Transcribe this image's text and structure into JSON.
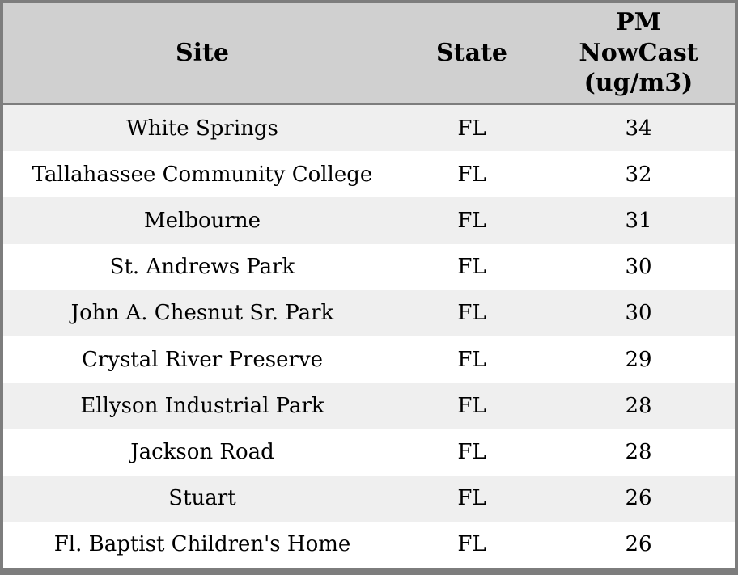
{
  "colors": {
    "header_background": "#d0d0d0",
    "row_stripe": "#efefef",
    "row_background": "#ffffff",
    "border": "#7d7d7d",
    "text": "#000000"
  },
  "table": {
    "header": {
      "site": "Site",
      "state": "State",
      "pm": "PM\nNowCast\n(ug/m3)"
    },
    "rows": [
      {
        "site": "White Springs",
        "state": "FL",
        "pm": "34"
      },
      {
        "site": "Tallahassee Community College",
        "state": "FL",
        "pm": "32"
      },
      {
        "site": "Melbourne",
        "state": "FL",
        "pm": "31"
      },
      {
        "site": "St. Andrews Park",
        "state": "FL",
        "pm": "30"
      },
      {
        "site": "John A. Chesnut Sr. Park",
        "state": "FL",
        "pm": "30"
      },
      {
        "site": "Crystal River Preserve",
        "state": "FL",
        "pm": "29"
      },
      {
        "site": "Ellyson Industrial Park",
        "state": "FL",
        "pm": "28"
      },
      {
        "site": "Jackson Road",
        "state": "FL",
        "pm": "28"
      },
      {
        "site": "Stuart",
        "state": "FL",
        "pm": "26"
      },
      {
        "site": "Fl. Baptist Children's Home",
        "state": "FL",
        "pm": "26"
      }
    ]
  },
  "chart_data": {
    "type": "table",
    "title": "",
    "columns": [
      "Site",
      "State",
      "PM NowCast (ug/m3)"
    ],
    "rows": [
      [
        "White Springs",
        "FL",
        34
      ],
      [
        "Tallahassee Community College",
        "FL",
        32
      ],
      [
        "Melbourne",
        "FL",
        31
      ],
      [
        "St. Andrews Park",
        "FL",
        30
      ],
      [
        "John A. Chesnut Sr. Park",
        "FL",
        30
      ],
      [
        "Crystal River Preserve",
        "FL",
        29
      ],
      [
        "Ellyson Industrial Park",
        "FL",
        28
      ],
      [
        "Jackson Road",
        "FL",
        28
      ],
      [
        "Stuart",
        "FL",
        26
      ],
      [
        "Fl. Baptist Children's Home",
        "FL",
        26
      ]
    ],
    "layout": {
      "zebra_striping": true,
      "vertical_gridlines": false,
      "header_divider": true
    }
  }
}
